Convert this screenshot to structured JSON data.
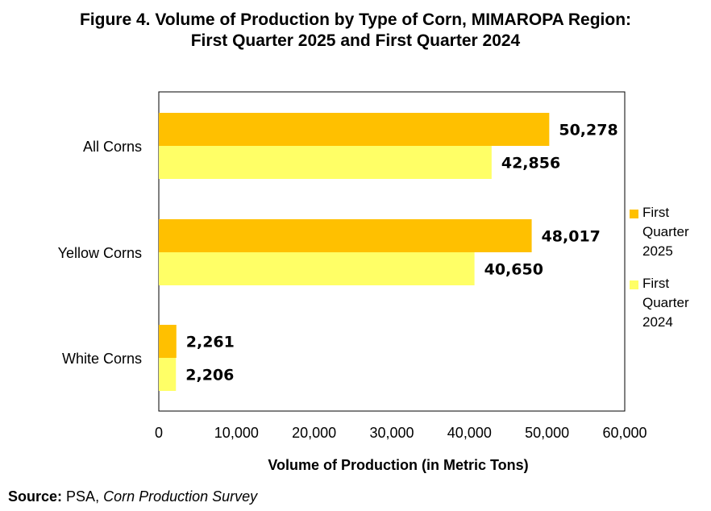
{
  "title_line1": "Figure 4. Volume of Production by Type of Corn, MIMAROPA Region:",
  "title_line2": "First Quarter 2025 and First Quarter 2024",
  "source_label": "Source:",
  "source_org": "PSA,",
  "source_survey": "Corn Production Survey",
  "legend": [
    {
      "label": "First Quarter 2025",
      "color": "#FFC000"
    },
    {
      "label": "First Quarter 2024",
      "color": "#FFFF66"
    }
  ],
  "chart_data": {
    "type": "bar",
    "orientation": "horizontal",
    "title": "Figure 4. Volume of Production by Type of Corn, MIMAROPA Region: First Quarter 2025 and First Quarter 2024",
    "categories": [
      "All Corns",
      "Yellow Corns",
      "White Corns"
    ],
    "series": [
      {
        "name": "First Quarter 2025",
        "values": [
          50278,
          48017,
          2261
        ],
        "color": "#FFC000"
      },
      {
        "name": "First Quarter 2024",
        "values": [
          42856,
          40650,
          2206
        ],
        "color": "#FFFF66"
      }
    ],
    "data_labels": [
      [
        "50,278",
        "48,017",
        "2,261"
      ],
      [
        "42,856",
        "40,650",
        "2,206"
      ]
    ],
    "xlabel": "Volume of Production (in Metric Tons)",
    "ylabel": "",
    "xlim": [
      0,
      60000
    ],
    "xticks": [
      0,
      10000,
      20000,
      30000,
      40000,
      50000,
      60000
    ],
    "xtick_labels": [
      "0",
      "10,000",
      "20,000",
      "30,000",
      "40,000",
      "50,000",
      "60,000"
    ],
    "grid": false,
    "legend_position": "right"
  }
}
